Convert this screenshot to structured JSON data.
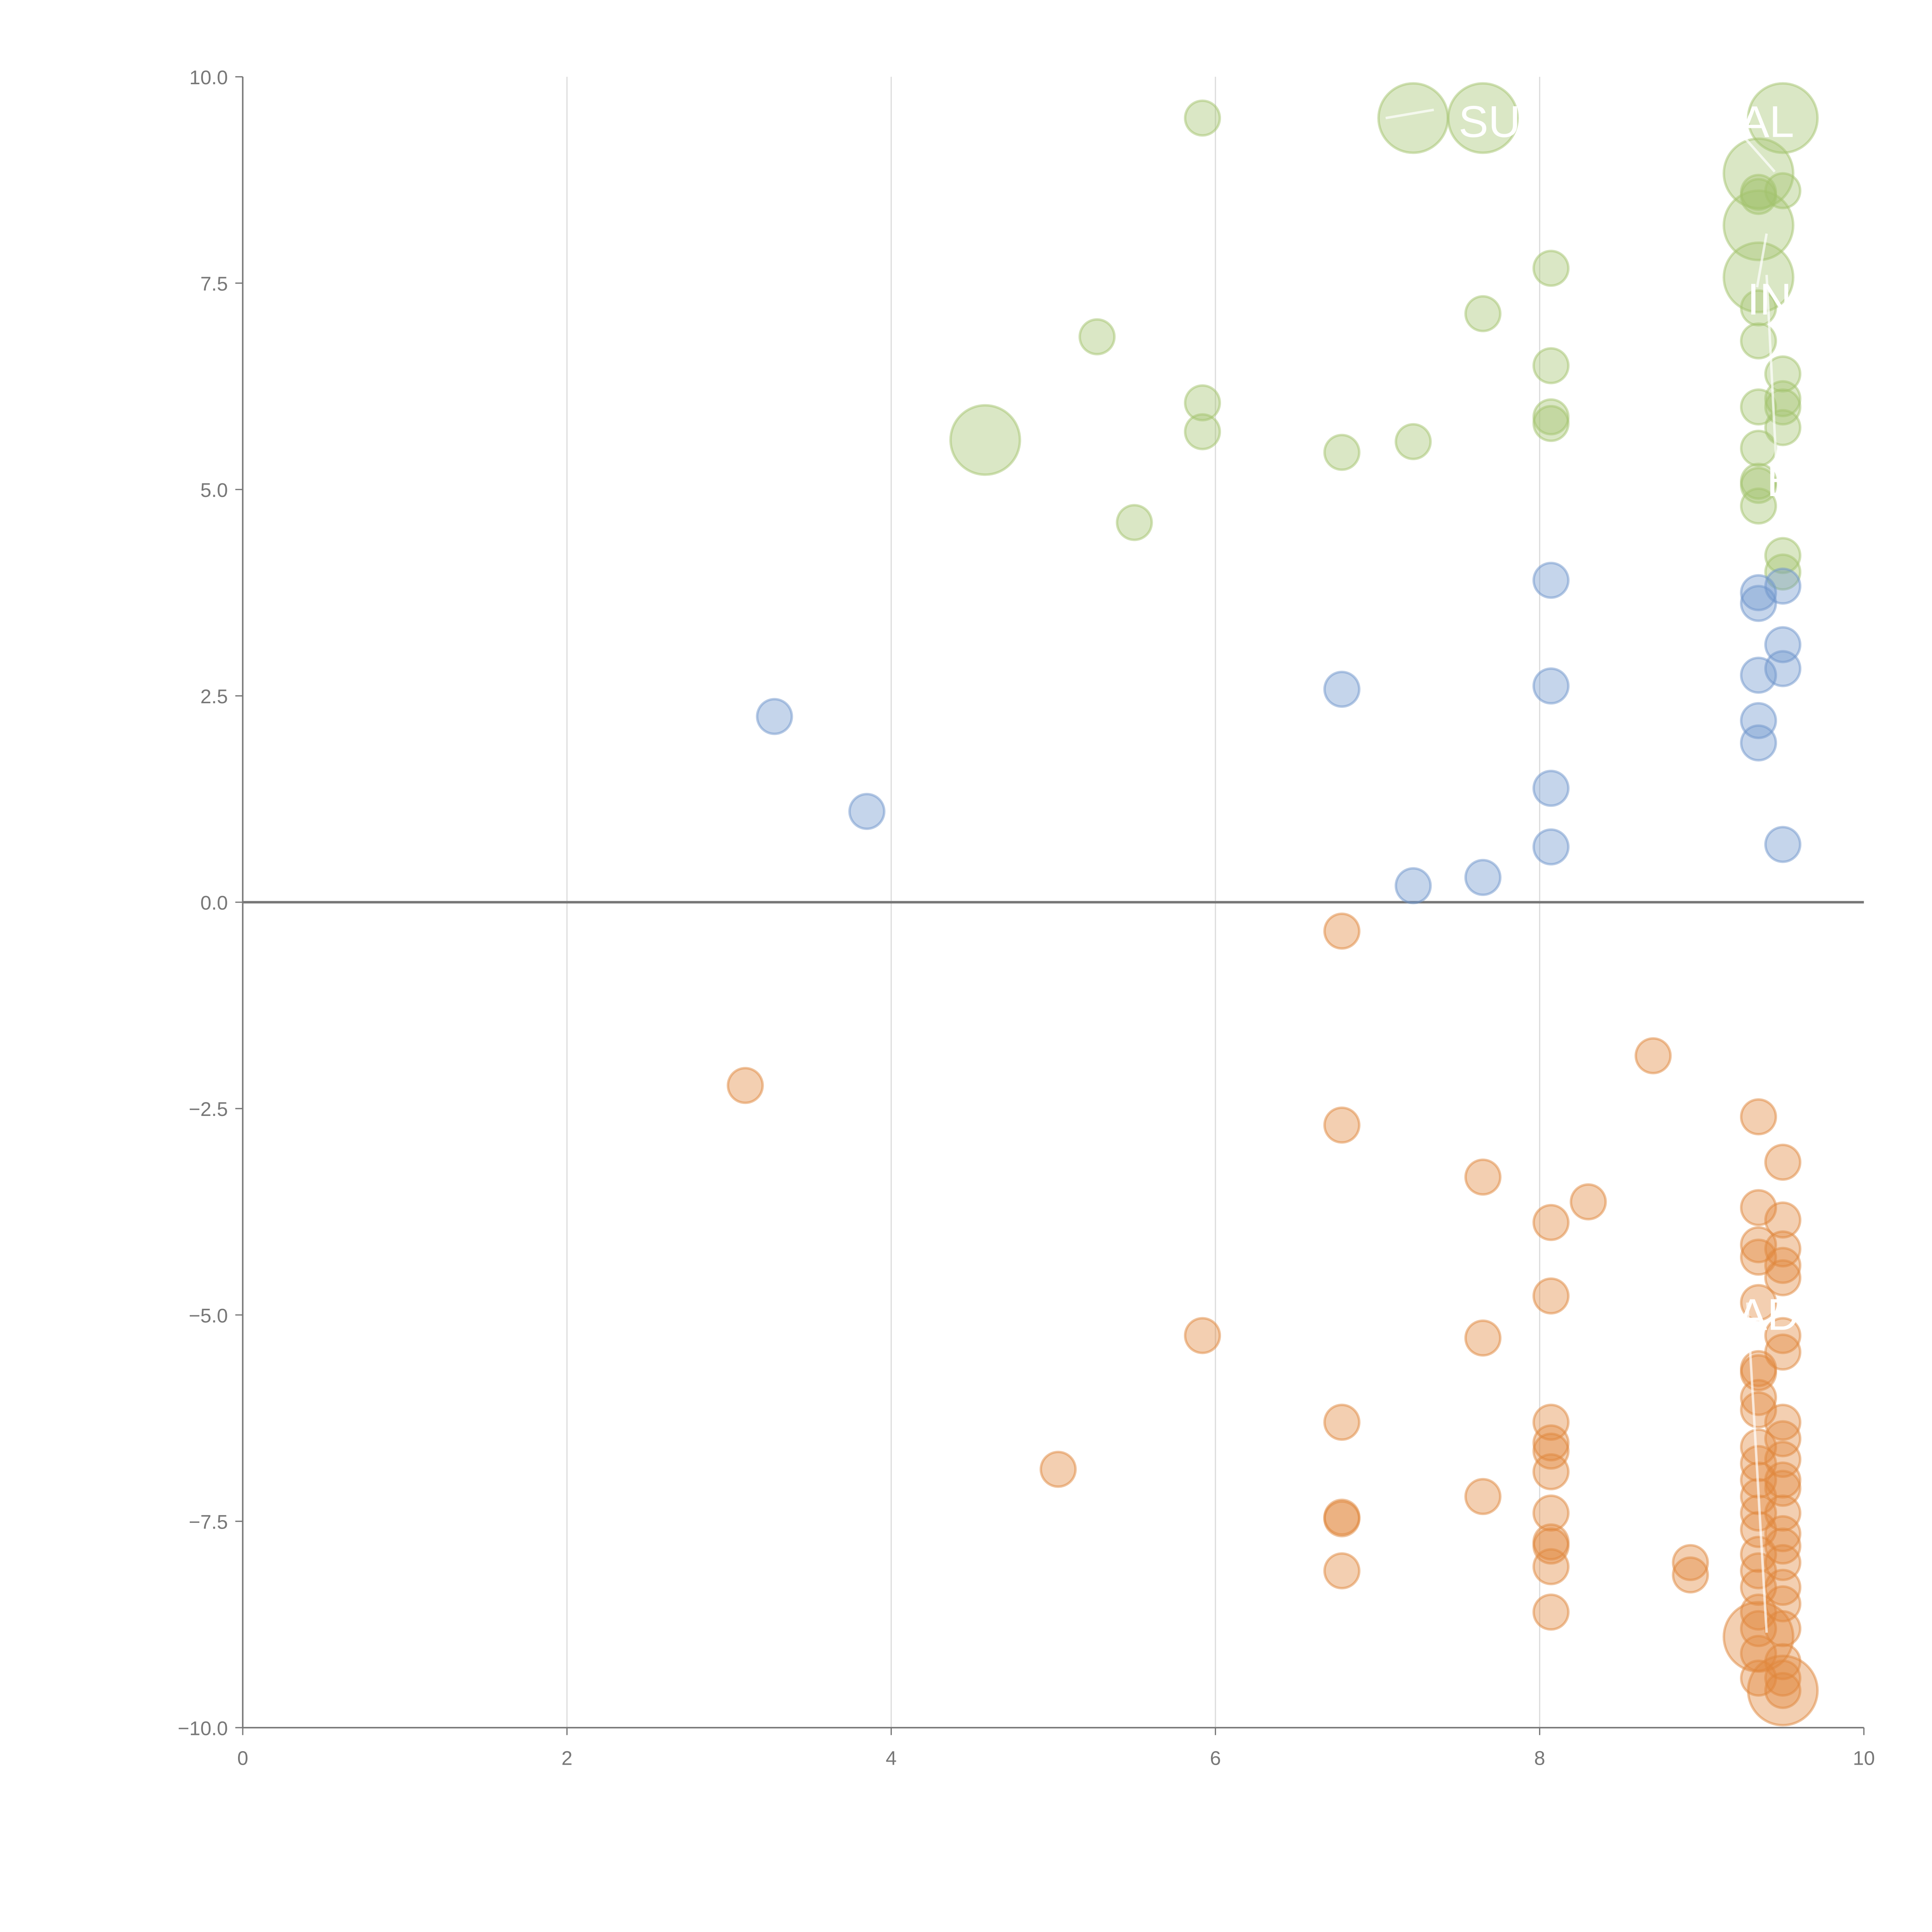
{
  "chart_data": {
    "type": "scatter",
    "title": "",
    "xlabel": "",
    "ylabel": "",
    "xlim": [
      0,
      10
    ],
    "ylim": [
      -10,
      10
    ],
    "grid": "vertical",
    "x_ticks": [
      "0",
      "2",
      "4",
      "6",
      "8",
      "10"
    ],
    "y_ticks": [
      "10.0",
      "7.5",
      "5.0",
      "2.5",
      "0.0",
      "−2.5",
      "−5.0",
      "−7.5",
      "−10.0"
    ],
    "colors": {
      "green": "#a3c46e",
      "blue": "#6f95cc",
      "orange": "#e0883d",
      "axis": "#777777",
      "grid": "#dddddd"
    },
    "series": [
      {
        "name": "green",
        "color": "#a3c46e",
        "points": [
          [
            5.92,
            9.5,
            1
          ],
          [
            7.22,
            9.5,
            2
          ],
          [
            7.65,
            9.5,
            2
          ],
          [
            9.5,
            9.5,
            2
          ],
          [
            9.35,
            8.83,
            2
          ],
          [
            9.35,
            8.6,
            1
          ],
          [
            9.35,
            8.55,
            1
          ],
          [
            9.5,
            8.62,
            1
          ],
          [
            9.35,
            8.2,
            2
          ],
          [
            9.35,
            7.57,
            2
          ],
          [
            9.35,
            7.2,
            1
          ],
          [
            9.35,
            6.8,
            1
          ],
          [
            9.5,
            6.4,
            1
          ],
          [
            9.5,
            6.1,
            1
          ],
          [
            9.5,
            6.0,
            1
          ],
          [
            9.35,
            6.0,
            1
          ],
          [
            9.5,
            5.75,
            1
          ],
          [
            9.35,
            5.5,
            1
          ],
          [
            9.35,
            5.1,
            1
          ],
          [
            9.35,
            5.05,
            1
          ],
          [
            9.35,
            4.8,
            1
          ],
          [
            9.5,
            4.2,
            1
          ],
          [
            9.5,
            4.0,
            1
          ],
          [
            8.07,
            7.68,
            1
          ],
          [
            7.65,
            7.13,
            1
          ],
          [
            8.07,
            6.5,
            1
          ],
          [
            8.07,
            5.88,
            1
          ],
          [
            8.07,
            5.8,
            1
          ],
          [
            5.27,
            6.85,
            1
          ],
          [
            5.92,
            6.05,
            1
          ],
          [
            5.92,
            5.7,
            1
          ],
          [
            4.58,
            5.6,
            2
          ],
          [
            6.78,
            5.45,
            1
          ],
          [
            7.22,
            5.58,
            1
          ],
          [
            5.5,
            4.6,
            1
          ]
        ]
      },
      {
        "name": "blue",
        "color": "#6f95cc",
        "points": [
          [
            3.28,
            2.25,
            1
          ],
          [
            3.85,
            1.1,
            1
          ],
          [
            6.78,
            2.58,
            1
          ],
          [
            7.22,
            0.2,
            1
          ],
          [
            7.65,
            0.3,
            1
          ],
          [
            8.07,
            3.9,
            1
          ],
          [
            8.07,
            2.62,
            1
          ],
          [
            8.07,
            1.38,
            1
          ],
          [
            8.07,
            0.67,
            1
          ],
          [
            9.35,
            3.75,
            1
          ],
          [
            9.35,
            3.62,
            1
          ],
          [
            9.5,
            3.83,
            1
          ],
          [
            9.5,
            3.12,
            1
          ],
          [
            9.5,
            2.83,
            1
          ],
          [
            9.35,
            2.75,
            1
          ],
          [
            9.35,
            2.2,
            1
          ],
          [
            9.35,
            1.93,
            1
          ],
          [
            9.5,
            0.7,
            1
          ]
        ]
      },
      {
        "name": "orange",
        "color": "#e0883d",
        "points": [
          [
            6.78,
            -0.35,
            1
          ],
          [
            3.1,
            -2.22,
            1
          ],
          [
            8.7,
            -1.86,
            1
          ],
          [
            6.78,
            -2.7,
            1
          ],
          [
            7.65,
            -3.33,
            1
          ],
          [
            8.3,
            -3.63,
            1
          ],
          [
            8.07,
            -3.88,
            1
          ],
          [
            8.07,
            -4.77,
            1
          ],
          [
            5.92,
            -5.25,
            1
          ],
          [
            7.65,
            -5.28,
            1
          ],
          [
            6.78,
            -6.3,
            1
          ],
          [
            5.03,
            -6.87,
            1
          ],
          [
            7.65,
            -7.2,
            1
          ],
          [
            6.78,
            -7.45,
            1
          ],
          [
            6.78,
            -7.47,
            1
          ],
          [
            6.78,
            -8.1,
            1
          ],
          [
            8.07,
            -6.3,
            1
          ],
          [
            8.07,
            -6.55,
            1
          ],
          [
            8.07,
            -6.65,
            1
          ],
          [
            8.07,
            -6.9,
            1
          ],
          [
            8.07,
            -7.4,
            1
          ],
          [
            8.07,
            -7.75,
            1
          ],
          [
            8.07,
            -7.8,
            1
          ],
          [
            8.07,
            -8.05,
            1
          ],
          [
            8.07,
            -8.6,
            1
          ],
          [
            8.93,
            -8.0,
            1
          ],
          [
            8.93,
            -8.15,
            1
          ],
          [
            9.35,
            -2.6,
            1
          ],
          [
            9.35,
            -3.7,
            1
          ],
          [
            9.35,
            -4.15,
            1
          ],
          [
            9.35,
            -4.3,
            1
          ],
          [
            9.35,
            -4.85,
            1
          ],
          [
            9.35,
            -5.65,
            1
          ],
          [
            9.35,
            -5.7,
            1
          ],
          [
            9.35,
            -6.0,
            1
          ],
          [
            9.35,
            -6.15,
            1
          ],
          [
            9.35,
            -6.6,
            1
          ],
          [
            9.35,
            -6.8,
            1
          ],
          [
            9.35,
            -7.0,
            1
          ],
          [
            9.35,
            -7.2,
            1
          ],
          [
            9.35,
            -7.4,
            1
          ],
          [
            9.35,
            -7.6,
            1
          ],
          [
            9.35,
            -7.9,
            1
          ],
          [
            9.35,
            -8.1,
            1
          ],
          [
            9.35,
            -8.3,
            1
          ],
          [
            9.35,
            -8.6,
            1
          ],
          [
            9.35,
            -8.8,
            1
          ],
          [
            9.35,
            -9.1,
            1
          ],
          [
            9.35,
            -9.4,
            1
          ],
          [
            9.35,
            -8.9,
            2
          ],
          [
            9.5,
            -3.15,
            1
          ],
          [
            9.5,
            -3.85,
            1
          ],
          [
            9.5,
            -4.2,
            1
          ],
          [
            9.5,
            -4.4,
            1
          ],
          [
            9.5,
            -4.55,
            1
          ],
          [
            9.5,
            -5.25,
            1
          ],
          [
            9.5,
            -5.45,
            1
          ],
          [
            9.5,
            -6.3,
            1
          ],
          [
            9.5,
            -6.5,
            1
          ],
          [
            9.5,
            -6.75,
            1
          ],
          [
            9.5,
            -7.0,
            1
          ],
          [
            9.5,
            -7.1,
            1
          ],
          [
            9.5,
            -7.4,
            1
          ],
          [
            9.5,
            -7.65,
            1
          ],
          [
            9.5,
            -7.8,
            1
          ],
          [
            9.5,
            -8.0,
            1
          ],
          [
            9.5,
            -8.3,
            1
          ],
          [
            9.5,
            -8.5,
            1
          ],
          [
            9.5,
            -8.8,
            1
          ],
          [
            9.5,
            -9.2,
            1
          ],
          [
            9.5,
            -9.4,
            1
          ],
          [
            9.5,
            -9.55,
            1
          ],
          [
            9.5,
            -9.55,
            2
          ]
        ]
      }
    ],
    "annotations": [
      {
        "text": "SUI",
        "x": 7.5,
        "y": 9.45,
        "from": [
          7.05,
          9.5
        ]
      },
      {
        "text": "EAL",
        "x": 9.05,
        "y": 9.45,
        "from": [
          9.45,
          8.85
        ]
      },
      {
        "text": "IN",
        "x": 9.28,
        "y": 7.3,
        "from": [
          9.4,
          8.1
        ]
      },
      {
        "text": "E",
        "x": 9.4,
        "y": 5.1,
        "from": [
          9.4,
          7.6
        ]
      },
      {
        "text": "AD",
        "x": 9.22,
        "y": -5.0,
        "from": [
          9.4,
          -8.85
        ]
      }
    ]
  }
}
